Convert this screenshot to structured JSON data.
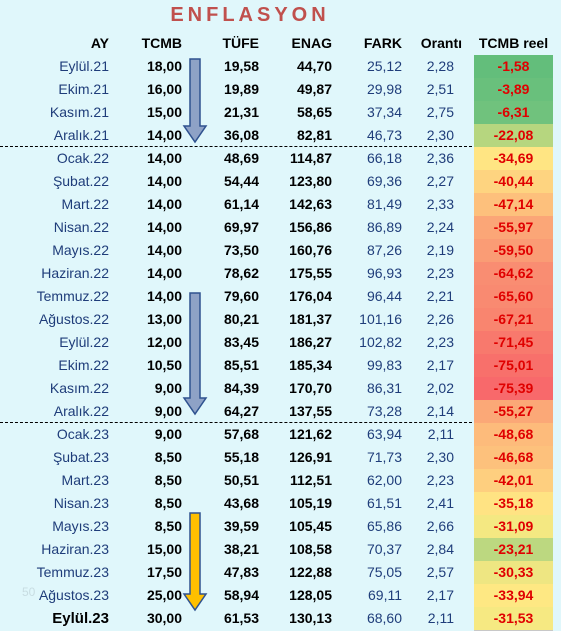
{
  "title": "ENFLASYON",
  "headers": {
    "ay": "AY",
    "tcmb": "TCMB",
    "tufe": "TÜFE",
    "enag": "ENAG",
    "fark": "FARK",
    "oranti": "Orantı",
    "tcmb_reel": "TCMB reel"
  },
  "rows": [
    {
      "ay": "Eylül.21",
      "tcmb": "18,00",
      "tufe": "19,58",
      "enag": "44,70",
      "fark": "25,12",
      "oranti": "2,28",
      "reel": "-1,58",
      "reel_color": "#63be7b"
    },
    {
      "ay": "Ekim.21",
      "tcmb": "16,00",
      "tufe": "19,89",
      "enag": "49,87",
      "fark": "29,98",
      "oranti": "2,51",
      "reel": "-3,89",
      "reel_color": "#69c07c"
    },
    {
      "ay": "Kasım.21",
      "tcmb": "15,00",
      "tufe": "21,31",
      "enag": "58,65",
      "fark": "37,34",
      "oranti": "2,75",
      "reel": "-6,31",
      "reel_color": "#70c27d"
    },
    {
      "ay": "Aralık.21",
      "tcmb": "14,00",
      "tufe": "36,08",
      "enag": "82,81",
      "fark": "46,73",
      "oranti": "2,30",
      "reel": "-22,08",
      "reel_color": "#b6d67f"
    },
    {
      "ay": "Ocak.22",
      "tcmb": "14,00",
      "tufe": "48,69",
      "enag": "114,87",
      "fark": "66,18",
      "oranti": "2,36",
      "reel": "-34,69",
      "reel_color": "#ffe583"
    },
    {
      "ay": "Şubat.22",
      "tcmb": "14,00",
      "tufe": "54,44",
      "enag": "123,80",
      "fark": "69,36",
      "oranti": "2,27",
      "reel": "-40,44",
      "reel_color": "#fed480"
    },
    {
      "ay": "Mart.22",
      "tcmb": "14,00",
      "tufe": "61,14",
      "enag": "142,63",
      "fark": "81,49",
      "oranti": "2,33",
      "reel": "-47,14",
      "reel_color": "#fdc07c"
    },
    {
      "ay": "Nisan.22",
      "tcmb": "14,00",
      "tufe": "69,97",
      "enag": "156,86",
      "fark": "86,89",
      "oranti": "2,24",
      "reel": "-55,97",
      "reel_color": "#fba677"
    },
    {
      "ay": "Mayıs.22",
      "tcmb": "14,00",
      "tufe": "73,50",
      "enag": "160,76",
      "fark": "87,26",
      "oranti": "2,19",
      "reel": "-59,50",
      "reel_color": "#fa9c75"
    },
    {
      "ay": "Haziran.22",
      "tcmb": "14,00",
      "tufe": "78,62",
      "enag": "175,55",
      "fark": "96,93",
      "oranti": "2,23",
      "reel": "-64,62",
      "reel_color": "#f98d72"
    },
    {
      "ay": "Temmuz.22",
      "tcmb": "14,00",
      "tufe": "79,60",
      "enag": "176,04",
      "fark": "96,44",
      "oranti": "2,21",
      "reel": "-65,60",
      "reel_color": "#f98a71"
    },
    {
      "ay": "Ağustos.22",
      "tcmb": "13,00",
      "tufe": "80,21",
      "enag": "181,37",
      "fark": "101,16",
      "oranti": "2,26",
      "reel": "-67,21",
      "reel_color": "#f9856f"
    },
    {
      "ay": "Eylül.22",
      "tcmb": "12,00",
      "tufe": "83,45",
      "enag": "186,27",
      "fark": "102,82",
      "oranti": "2,23",
      "reel": "-71,45",
      "reel_color": "#f8796d"
    },
    {
      "ay": "Ekim.22",
      "tcmb": "10,50",
      "tufe": "85,51",
      "enag": "185,34",
      "fark": "99,83",
      "oranti": "2,17",
      "reel": "-75,01",
      "reel_color": "#f8706b"
    },
    {
      "ay": "Kasım.22",
      "tcmb": "9,00",
      "tufe": "84,39",
      "enag": "170,70",
      "fark": "86,31",
      "oranti": "2,02",
      "reel": "-75,39",
      "reel_color": "#f8696b"
    },
    {
      "ay": "Aralık.22",
      "tcmb": "9,00",
      "tufe": "64,27",
      "enag": "137,55",
      "fark": "73,28",
      "oranti": "2,14",
      "reel": "-55,27",
      "reel_color": "#fba877"
    },
    {
      "ay": "Ocak.23",
      "tcmb": "9,00",
      "tufe": "57,68",
      "enag": "121,62",
      "fark": "63,94",
      "oranti": "2,11",
      "reel": "-48,68",
      "reel_color": "#fdbb7b"
    },
    {
      "ay": "Şubat.23",
      "tcmb": "8,50",
      "tufe": "55,18",
      "enag": "126,91",
      "fark": "71,73",
      "oranti": "2,30",
      "reel": "-46,68",
      "reel_color": "#fdc17c"
    },
    {
      "ay": "Mart.23",
      "tcmb": "8,50",
      "tufe": "50,51",
      "enag": "112,51",
      "fark": "62,00",
      "oranti": "2,23",
      "reel": "-42,01",
      "reel_color": "#fecf7f"
    },
    {
      "ay": "Nisan.23",
      "tcmb": "8,50",
      "tufe": "43,68",
      "enag": "105,19",
      "fark": "61,51",
      "oranti": "2,41",
      "reel": "-35,18",
      "reel_color": "#ffe383"
    },
    {
      "ay": "Mayıs.23",
      "tcmb": "8,50",
      "tufe": "39,59",
      "enag": "105,45",
      "fark": "65,86",
      "oranti": "2,66",
      "reel": "-31,09",
      "reel_color": "#f4e882"
    },
    {
      "ay": "Haziran.23",
      "tcmb": "15,00",
      "tufe": "38,21",
      "enag": "108,58",
      "fark": "70,37",
      "oranti": "2,84",
      "reel": "-23,21",
      "reel_color": "#bcd880"
    },
    {
      "ay": "Temmuz.23",
      "tcmb": "17,50",
      "tufe": "47,83",
      "enag": "122,88",
      "fark": "75,05",
      "oranti": "2,57",
      "reel": "-30,33",
      "reel_color": "#eee682"
    },
    {
      "ay": "Ağustos.23",
      "tcmb": "25,00",
      "tufe": "58,94",
      "enag": "128,05",
      "fark": "69,11",
      "oranti": "2,17",
      "reel": "-33,94",
      "reel_color": "#fee883"
    },
    {
      "ay": "Eylül.23",
      "tcmb": "30,00",
      "tufe": "61,53",
      "enag": "130,13",
      "fark": "68,60",
      "oranti": "2,11",
      "reel": "-31,53",
      "reel_color": "#f6e982"
    }
  ],
  "arrows": [
    {
      "color": "#8ea2c6",
      "stroke": "#2f528f"
    },
    {
      "color": "#8ea2c6",
      "stroke": "#2f528f"
    },
    {
      "color": "#ffc000",
      "stroke": "#2f528f"
    }
  ],
  "watermark": "50"
}
